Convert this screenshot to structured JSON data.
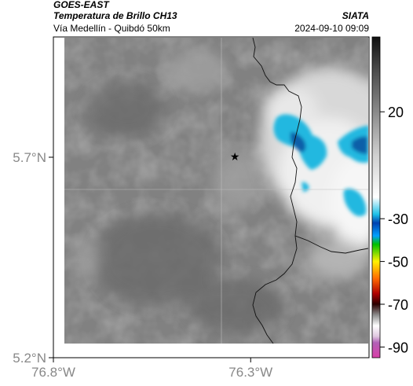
{
  "header": {
    "source": "GOES-EAST",
    "title": "Temperatura de Brillo CH13",
    "subtitle": "Vía Medellín - Quibdó 50km",
    "brand": "SIATA",
    "datetime": "2024-09-10 09:09"
  },
  "map": {
    "lon_range": [
      -76.8,
      -76.0
    ],
    "lat_range": [
      5.2,
      6.0
    ],
    "x_ticks": [
      {
        "value": -76.8,
        "label": "76.8°W"
      },
      {
        "value": -76.3,
        "label": "76.3°W"
      }
    ],
    "y_ticks": [
      {
        "value": 5.7,
        "label": "5.7°N"
      },
      {
        "value": 5.2,
        "label": "5.2°N"
      }
    ],
    "grid": true,
    "marker": {
      "lon": -76.34,
      "lat": 5.7,
      "symbol": "star"
    },
    "colors": {
      "background_field": "#808080",
      "cold_cloud": "#f2f2f2",
      "deep_convection": "#1cb4dc",
      "coast_line": "#000000",
      "grid_line": "#bfbfbf"
    }
  },
  "colorbar": {
    "labels": [
      {
        "value": 20,
        "label": "20"
      },
      {
        "value": -30,
        "label": "-30"
      },
      {
        "value": -50,
        "label": "-50"
      },
      {
        "value": -70,
        "label": "-70"
      },
      {
        "value": -90,
        "label": "-90"
      }
    ],
    "range": [
      -95,
      55
    ],
    "stops": [
      {
        "value": -95,
        "color": "#d93fa8"
      },
      {
        "value": -88,
        "color": "#b260b6"
      },
      {
        "value": -85,
        "color": "#e0c8e0"
      },
      {
        "value": -80,
        "color": "#ffffff"
      },
      {
        "value": -75,
        "color": "#8c8c8c"
      },
      {
        "value": -70,
        "color": "#2a0000"
      },
      {
        "value": -65,
        "color": "#b00000"
      },
      {
        "value": -58,
        "color": "#ff6a00"
      },
      {
        "value": -50,
        "color": "#fff200"
      },
      {
        "value": -42,
        "color": "#00c000"
      },
      {
        "value": -38,
        "color": "#00a0ff"
      },
      {
        "value": -32,
        "color": "#0040b0"
      },
      {
        "value": -28,
        "color": "#1cc0e8"
      },
      {
        "value": -20,
        "color": "#ffffff"
      },
      {
        "value": 0,
        "color": "#cfcfcf"
      },
      {
        "value": 20,
        "color": "#8a8a8a"
      },
      {
        "value": 40,
        "color": "#4a4a4a"
      },
      {
        "value": 55,
        "color": "#111111"
      }
    ]
  }
}
